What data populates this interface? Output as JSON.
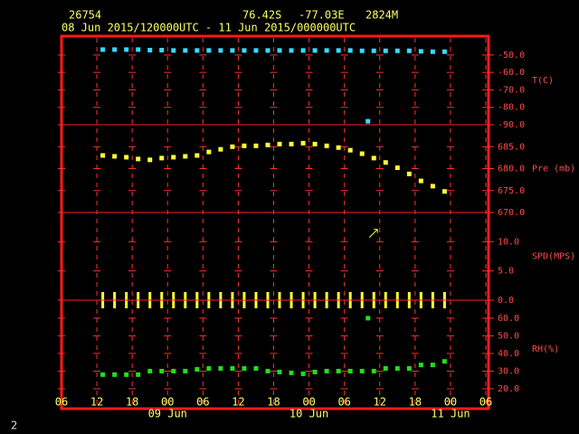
{
  "header": {
    "station": "26754",
    "lat": "76.42S",
    "lon": "-77.03E",
    "elev": "2824M",
    "period": "08 Jun 2015/120000UTC - 11 Jun 2015/000000UTC",
    "page": "2"
  },
  "x_axis": {
    "xlim": [
      6,
      78
    ],
    "xticks": [
      {
        "value": 6,
        "label": "06"
      },
      {
        "value": 12,
        "label": "12"
      },
      {
        "value": 18,
        "label": "18"
      },
      {
        "value": 24,
        "label": "00"
      },
      {
        "value": 30,
        "label": "06"
      },
      {
        "value": 36,
        "label": "12"
      },
      {
        "value": 42,
        "label": "18"
      },
      {
        "value": 48,
        "label": "00"
      },
      {
        "value": 54,
        "label": "06"
      },
      {
        "value": 60,
        "label": "12"
      },
      {
        "value": 66,
        "label": "18"
      },
      {
        "value": 72,
        "label": "00"
      },
      {
        "value": 78,
        "label": "06"
      }
    ],
    "date_ticks": [
      {
        "value": 24,
        "label": "09 Jun"
      },
      {
        "value": 48,
        "label": "10 Jun"
      },
      {
        "value": 72,
        "label": "11 Jun"
      }
    ]
  },
  "chart_data": [
    {
      "type": "scatter",
      "ylabel": "T(C)",
      "ylim": [
        -90,
        -39.2
      ],
      "yticks": [
        {
          "value": -50,
          "label": "-50.0"
        },
        {
          "value": -60,
          "label": "-60.0"
        },
        {
          "value": -70,
          "label": "-70.0"
        },
        {
          "value": -80,
          "label": "-80.0"
        },
        {
          "value": -90,
          "label": "-90.0"
        }
      ],
      "series": [
        {
          "marker": "square",
          "color": "#33ddff",
          "x": [
            13,
            15,
            17,
            19,
            21,
            23,
            25,
            27,
            29,
            31,
            33,
            35,
            37,
            39,
            41,
            43,
            45,
            47,
            49,
            51,
            53,
            55,
            57,
            59,
            61,
            63,
            65,
            67,
            69,
            71
          ],
          "values": [
            -46.9,
            -46.9,
            -46.9,
            -46.9,
            -47.2,
            -47.2,
            -47.4,
            -47.4,
            -47.4,
            -47.4,
            -47.4,
            -47.4,
            -47.4,
            -47.4,
            -47.4,
            -47.4,
            -47.4,
            -47.4,
            -47.4,
            -47.4,
            -47.4,
            -47.4,
            -47.6,
            -47.6,
            -47.6,
            -47.6,
            -47.6,
            -47.9,
            -48.1,
            -48.1
          ]
        },
        {
          "marker": "square",
          "color": "#33ddff",
          "x": [
            58
          ],
          "values": [
            -88.0
          ]
        }
      ]
    },
    {
      "type": "scatter",
      "ylabel": "Pre (mb)",
      "ylim": [
        670,
        690
      ],
      "yticks": [
        {
          "value": 685,
          "label": "685.0"
        },
        {
          "value": 680,
          "label": "680.0"
        },
        {
          "value": 675,
          "label": "675.0"
        },
        {
          "value": 670,
          "label": "670.0"
        }
      ],
      "series": [
        {
          "marker": "square",
          "color": "#ffff33",
          "x": [
            13,
            15,
            17,
            19,
            21,
            23,
            25,
            27,
            29,
            31,
            33,
            35,
            37,
            39,
            41,
            43,
            45,
            47,
            49,
            51,
            53,
            55,
            57,
            59,
            61,
            63,
            65,
            67,
            69,
            71
          ],
          "values": [
            683.0,
            682.8,
            682.6,
            682.2,
            682.0,
            682.4,
            682.6,
            682.8,
            683.0,
            683.8,
            684.4,
            685.0,
            685.2,
            685.2,
            685.4,
            685.6,
            685.6,
            685.8,
            685.6,
            685.2,
            684.8,
            684.2,
            683.4,
            682.4,
            681.4,
            680.2,
            678.8,
            677.2,
            676.0,
            674.8
          ]
        }
      ]
    },
    {
      "type": "scatter",
      "ylabel": "SPD(MPS)",
      "ylim": [
        0,
        15
      ],
      "yticks": [
        {
          "value": 10,
          "label": "10.0"
        },
        {
          "value": 5,
          "label": "5.0"
        },
        {
          "value": 0,
          "label": "0.0"
        }
      ],
      "series": [
        {
          "marker": "bar",
          "color": "#ffff33",
          "x": [
            13,
            15,
            17,
            19,
            21,
            23,
            25,
            27,
            29,
            31,
            33,
            35,
            37,
            39,
            41,
            43,
            45,
            47,
            49,
            51,
            53,
            55,
            57,
            59,
            61,
            63,
            65,
            67,
            69,
            71
          ],
          "values": [
            0,
            0,
            0,
            0,
            0,
            0,
            0,
            0,
            0,
            0,
            0,
            0,
            0,
            0,
            0,
            0,
            0,
            0,
            0,
            0,
            0,
            0,
            0,
            0,
            0,
            0,
            0,
            0,
            0,
            0
          ]
        },
        {
          "marker": "arrow",
          "color": "#ffff33",
          "x": [
            59
          ],
          "values": [
            11.5
          ]
        }
      ]
    },
    {
      "type": "scatter",
      "ylabel": "RH(%)",
      "ylim": [
        8.7,
        70.2
      ],
      "yticks": [
        {
          "value": 60,
          "label": "60.0"
        },
        {
          "value": 50,
          "label": "50.0"
        },
        {
          "value": 40,
          "label": "40.0"
        },
        {
          "value": 30,
          "label": "30.0"
        },
        {
          "value": 20,
          "label": "20.0"
        }
      ],
      "series": [
        {
          "marker": "square",
          "color": "#22dd22",
          "x": [
            13,
            15,
            17,
            19,
            21,
            23,
            25,
            27,
            29,
            31,
            33,
            35,
            37,
            39,
            41,
            43,
            45,
            47,
            49,
            51,
            53,
            55,
            57,
            59,
            61,
            63,
            65,
            67,
            69,
            71
          ],
          "values": [
            28.0,
            28.0,
            28.0,
            28.0,
            30.0,
            30.0,
            30.0,
            30.0,
            31.0,
            31.5,
            31.5,
            31.5,
            31.5,
            31.5,
            30.0,
            29.5,
            29.0,
            28.5,
            29.5,
            30.0,
            30.0,
            30.0,
            30.0,
            30.0,
            31.5,
            31.5,
            31.5,
            33.5,
            33.5,
            35.5
          ]
        },
        {
          "marker": "square",
          "color": "#22dd22",
          "x": [
            58
          ],
          "values": [
            60.0
          ]
        }
      ]
    }
  ]
}
